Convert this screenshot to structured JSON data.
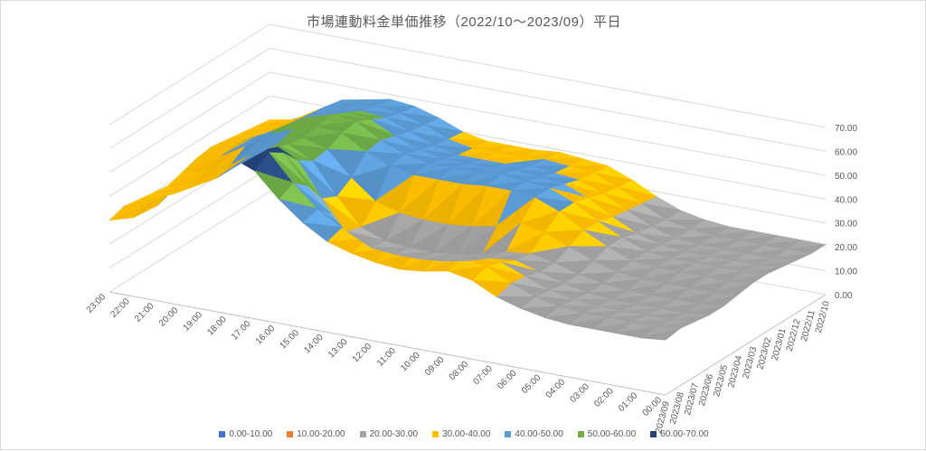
{
  "chart_data": {
    "type": "surface-3d",
    "title": "市場連動料金単価推移（2022/10～2023/09）平日",
    "x_hours": [
      "00:00",
      "01:00",
      "02:00",
      "03:00",
      "04:00",
      "05:00",
      "06:00",
      "07:00",
      "08:00",
      "09:00",
      "10:00",
      "11:00",
      "12:00",
      "13:00",
      "14:00",
      "15:00",
      "16:00",
      "17:00",
      "18:00",
      "19:00",
      "20:00",
      "21:00",
      "22:00",
      "23:00"
    ],
    "y_months": [
      "2022/10",
      "2022/11",
      "2022/12",
      "2023/01",
      "2023/02",
      "2023/03",
      "2023/04",
      "2023/05",
      "2023/06",
      "2023/07",
      "2023/08",
      "2023/09"
    ],
    "z_ticks": [
      "0.00",
      "10.00",
      "20.00",
      "30.00",
      "40.00",
      "50.00",
      "60.00",
      "70.00"
    ],
    "zlim": [
      0,
      70
    ],
    "legend": [
      {
        "label": "0.00-10.00",
        "color": "#4472c4"
      },
      {
        "label": "10.00-20.00",
        "color": "#ed7d31"
      },
      {
        "label": "20.00-30.00",
        "color": "#a5a5a5"
      },
      {
        "label": "30.00-40.00",
        "color": "#ffc000"
      },
      {
        "label": "40.00-50.00",
        "color": "#5b9bd5"
      },
      {
        "label": "50.00-60.00",
        "color": "#70ad47"
      },
      {
        "label": "60.00-70.00",
        "color": "#264478"
      }
    ],
    "legend_placement": "bottom",
    "values_note_rows_are_months_cols_are_hours": "",
    "values": [
      [
        21,
        21,
        21,
        21,
        21,
        22,
        24,
        28,
        33,
        37,
        38,
        39,
        38,
        38,
        38,
        40,
        44,
        47,
        48,
        46,
        44,
        38,
        32,
        30
      ],
      [
        21,
        21,
        21,
        21,
        21,
        22,
        24,
        29,
        34,
        38,
        39,
        40,
        39,
        39,
        39,
        41,
        45,
        48,
        49,
        47,
        45,
        39,
        33,
        31
      ],
      [
        22,
        21,
        21,
        21,
        21,
        22,
        25,
        30,
        35,
        39,
        40,
        41,
        40,
        40,
        40,
        42,
        46,
        50,
        51,
        48,
        46,
        40,
        34,
        32
      ],
      [
        23,
        22,
        22,
        22,
        22,
        23,
        26,
        31,
        37,
        41,
        42,
        43,
        42,
        42,
        42,
        44,
        48,
        53,
        54,
        51,
        48,
        42,
        36,
        33
      ],
      [
        24,
        23,
        23,
        23,
        23,
        24,
        28,
        33,
        39,
        43,
        44,
        45,
        44,
        44,
        44,
        46,
        50,
        56,
        57,
        54,
        50,
        43,
        37,
        34
      ],
      [
        24,
        23,
        23,
        23,
        23,
        24,
        28,
        33,
        39,
        43,
        44,
        44,
        43,
        43,
        43,
        45,
        49,
        55,
        56,
        53,
        49,
        42,
        36,
        33
      ],
      [
        23,
        22,
        22,
        22,
        22,
        23,
        26,
        30,
        34,
        36,
        33,
        31,
        30,
        30,
        31,
        34,
        42,
        52,
        55,
        51,
        45,
        38,
        33,
        31
      ],
      [
        22,
        21,
        21,
        21,
        21,
        22,
        24,
        27,
        29,
        28,
        25,
        23,
        22,
        22,
        23,
        27,
        38,
        51,
        56,
        52,
        44,
        36,
        31,
        29
      ],
      [
        22,
        21,
        21,
        21,
        21,
        22,
        24,
        27,
        30,
        29,
        26,
        24,
        23,
        23,
        24,
        29,
        41,
        55,
        60,
        56,
        48,
        38,
        32,
        30
      ],
      [
        23,
        22,
        22,
        22,
        22,
        23,
        25,
        29,
        33,
        34,
        32,
        31,
        31,
        32,
        34,
        40,
        50,
        62,
        67,
        63,
        54,
        42,
        34,
        31
      ],
      [
        24,
        23,
        23,
        23,
        23,
        24,
        26,
        30,
        35,
        37,
        36,
        35,
        35,
        37,
        40,
        46,
        55,
        66,
        71,
        66,
        56,
        43,
        35,
        32
      ],
      [
        23,
        22,
        22,
        22,
        22,
        23,
        25,
        28,
        33,
        35,
        33,
        32,
        33,
        35,
        38,
        44,
        52,
        62,
        66,
        61,
        52,
        40,
        33,
        30
      ]
    ]
  }
}
